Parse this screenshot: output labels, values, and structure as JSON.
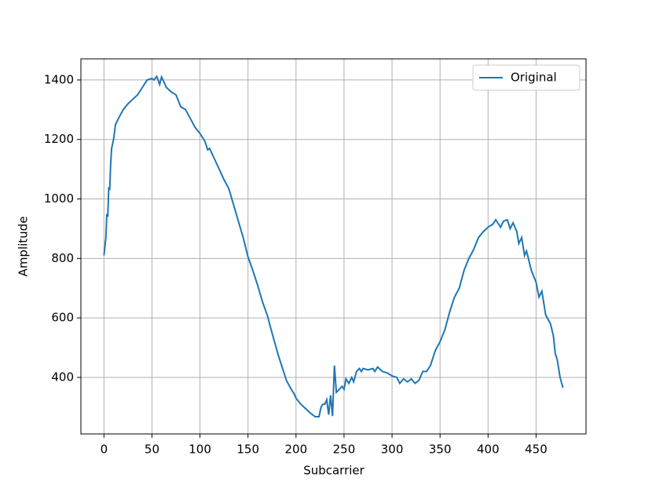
{
  "chart_data": {
    "type": "line",
    "xlabel": "Subcarrier",
    "ylabel": "Amplitude",
    "x": [
      0,
      2,
      3,
      4,
      5,
      6,
      7,
      8,
      10,
      12,
      15,
      20,
      25,
      30,
      35,
      40,
      45,
      50,
      52,
      55,
      58,
      60,
      65,
      70,
      75,
      80,
      85,
      90,
      95,
      100,
      105,
      108,
      110,
      115,
      120,
      125,
      130,
      135,
      140,
      145,
      150,
      155,
      160,
      165,
      170,
      175,
      178,
      182,
      186,
      190,
      195,
      198,
      200,
      205,
      210,
      215,
      220,
      224,
      226,
      228,
      230,
      232,
      234,
      236,
      238,
      240,
      242,
      245,
      248,
      250,
      252,
      255,
      258,
      260,
      263,
      266,
      268,
      270,
      275,
      280,
      282,
      285,
      290,
      295,
      300,
      305,
      308,
      312,
      316,
      320,
      324,
      328,
      332,
      336,
      340,
      345,
      350,
      355,
      360,
      365,
      370,
      375,
      380,
      385,
      390,
      395,
      400,
      405,
      408,
      410,
      413,
      416,
      420,
      423,
      426,
      430,
      432,
      435,
      438,
      440,
      442,
      445,
      450,
      453,
      456,
      460,
      465,
      468,
      470,
      472,
      475,
      478
    ],
    "series": [
      {
        "name": "Original",
        "color": "#1f77b4",
        "values": [
          810,
          870,
          950,
          940,
          1040,
          1030,
          1120,
          1170,
          1200,
          1250,
          1270,
          1300,
          1320,
          1335,
          1350,
          1375,
          1400,
          1405,
          1400,
          1412,
          1385,
          1410,
          1375,
          1360,
          1350,
          1310,
          1300,
          1270,
          1240,
          1220,
          1195,
          1165,
          1170,
          1135,
          1100,
          1065,
          1035,
          980,
          925,
          870,
          805,
          760,
          710,
          655,
          610,
          550,
          515,
          470,
          430,
          390,
          360,
          345,
          330,
          310,
          295,
          280,
          268,
          268,
          300,
          310,
          310,
          325,
          275,
          340,
          270,
          440,
          350,
          360,
          370,
          360,
          395,
          380,
          400,
          385,
          420,
          430,
          420,
          430,
          425,
          430,
          420,
          435,
          420,
          415,
          405,
          400,
          380,
          395,
          385,
          395,
          380,
          390,
          420,
          420,
          440,
          490,
          520,
          560,
          620,
          670,
          700,
          760,
          800,
          830,
          870,
          890,
          905,
          915,
          930,
          920,
          905,
          925,
          930,
          900,
          920,
          890,
          850,
          870,
          810,
          825,
          800,
          760,
          720,
          670,
          690,
          610,
          580,
          540,
          480,
          460,
          400,
          365
        ]
      }
    ],
    "xlim": [
      -24,
      502
    ],
    "ylim": [
      210,
      1471
    ],
    "xticks": [
      0,
      50,
      100,
      150,
      200,
      250,
      300,
      350,
      400,
      450
    ],
    "yticks": [
      400,
      600,
      800,
      1000,
      1200,
      1400
    ],
    "grid": true,
    "legend": "upper right"
  }
}
